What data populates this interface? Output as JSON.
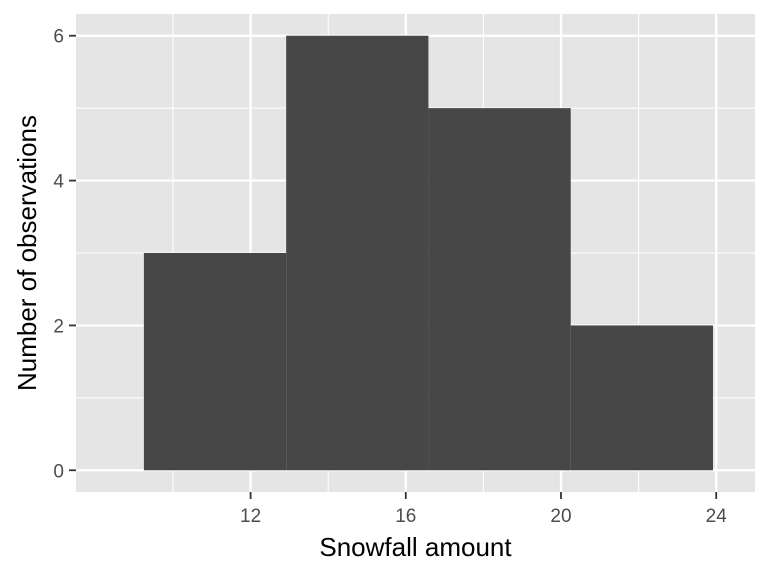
{
  "chart_data": {
    "type": "histogram",
    "title": "",
    "xlabel": "Snowfall amount",
    "ylabel": "Number of observations",
    "bins": [
      {
        "start": 9.25,
        "end": 12.917,
        "count": 3
      },
      {
        "start": 12.917,
        "end": 16.583,
        "count": 6
      },
      {
        "start": 16.583,
        "end": 20.25,
        "count": 5
      },
      {
        "start": 20.25,
        "end": 23.917,
        "count": 2
      }
    ],
    "xlim": [
      7.5,
      25.0
    ],
    "ylim": [
      -0.3,
      6.3
    ],
    "x_ticks": [
      12,
      16,
      20,
      24
    ],
    "y_ticks": [
      0,
      2,
      4,
      6
    ],
    "x_minor": [
      10,
      14,
      18,
      22
    ],
    "y_minor": [
      1,
      3,
      5
    ],
    "bar_color": "#474747",
    "panel_background": "#e5e5e5",
    "grid_color": "#ffffff",
    "grid": true,
    "legend": "none"
  }
}
